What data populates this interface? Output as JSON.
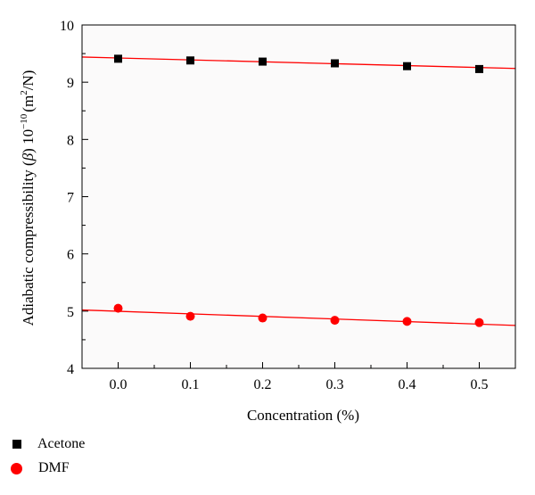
{
  "chart_data": {
    "type": "scatter",
    "xlabel": "Concentration (%)",
    "ylabel": {
      "prefix": "Adiabatic compressibility (",
      "symbol": "β",
      "mid": ") 10",
      "exp": "−10",
      "unit_open": "(m",
      "unit_exp": "2",
      "unit_close": "/N)"
    },
    "xlim": [
      -0.05,
      0.55
    ],
    "ylim": [
      4,
      10
    ],
    "x_ticks": [
      "0.0",
      "0.1",
      "0.2",
      "0.3",
      "0.4",
      "0.5"
    ],
    "y_ticks": [
      "4",
      "5",
      "6",
      "7",
      "8",
      "9",
      "10"
    ],
    "x": [
      0.0,
      0.1,
      0.2,
      0.3,
      0.4,
      0.5
    ],
    "series": [
      {
        "name": "Acetone",
        "marker": "square",
        "color": "#000000",
        "values": [
          9.41,
          9.38,
          9.36,
          9.33,
          9.28,
          9.23
        ],
        "fit_line": {
          "color": "#ff0000",
          "y_at_xmin": 9.44,
          "y_at_xmax": 9.24
        }
      },
      {
        "name": "DMF",
        "marker": "circle",
        "color": "#ff0000",
        "values": [
          5.05,
          4.91,
          4.88,
          4.84,
          4.82,
          4.8
        ],
        "fit_line": {
          "color": "#ff0000",
          "y_at_xmin": 5.02,
          "y_at_xmax": 4.75
        }
      }
    ],
    "grid": false,
    "legend_position": "bottom-left"
  }
}
